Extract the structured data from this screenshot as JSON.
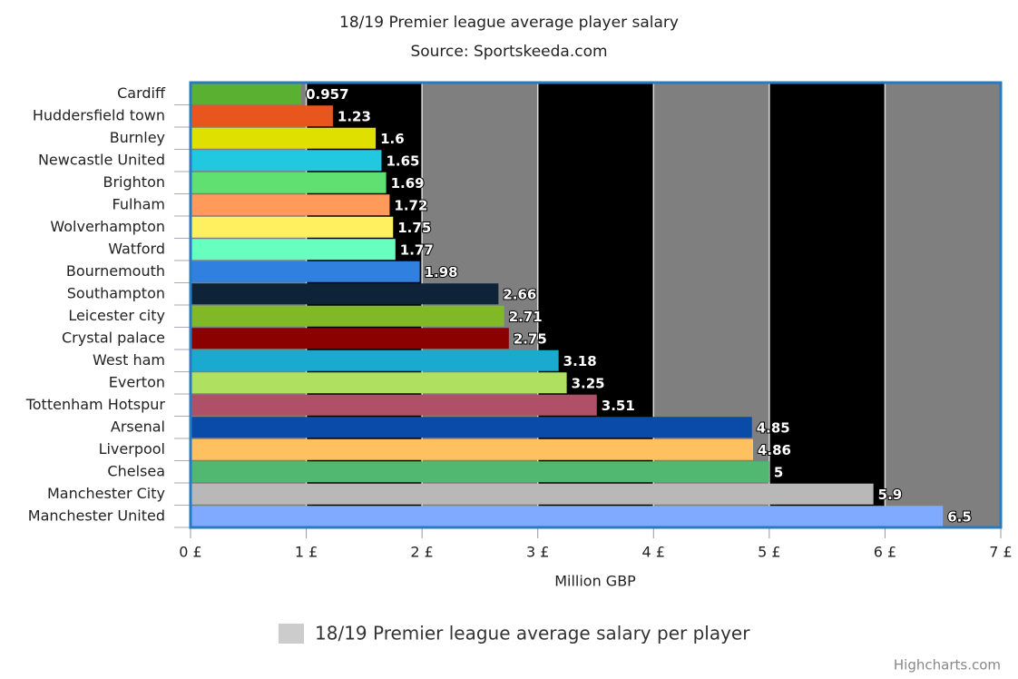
{
  "chart_data": {
    "type": "bar",
    "orientation": "horizontal",
    "title": "18/19 Premier league average player salary",
    "subtitle": "Source: Sportskeeda.com",
    "x_label": "Million GBP",
    "credits": "Highcharts.com",
    "categories": [
      "Cardiff",
      "Huddersfield town",
      "Burnley",
      "Newcastle United",
      "Brighton",
      "Fulham",
      "Wolverhampton",
      "Watford",
      "Bournemouth",
      "Southampton",
      "Leicester city",
      "Crystal palace",
      "West ham",
      "Everton",
      "Tottenham Hotspur",
      "Arsenal",
      "Liverpool",
      "Chelsea",
      "Manchester City",
      "Manchester United"
    ],
    "series": [
      {
        "name": "18/19 Premier league average salary per player",
        "color": "#cccccc",
        "colors": [
          "#5ab030",
          "#e8561e",
          "#e0e000",
          "#22c8e0",
          "#60e070",
          "#ff9a5a",
          "#fff060",
          "#66ffc0",
          "#3080e0",
          "#0e2238",
          "#80b828",
          "#8b0000",
          "#1aaad0",
          "#b0e060",
          "#b05068",
          "#0a4aa8",
          "#ffc060",
          "#50b870",
          "#b8b8b8",
          "#80aaff"
        ],
        "values": [
          0.957,
          1.23,
          1.6,
          1.65,
          1.69,
          1.72,
          1.75,
          1.77,
          1.98,
          2.66,
          2.71,
          2.75,
          3.18,
          3.25,
          3.51,
          4.85,
          4.86,
          5,
          5.9,
          6.5
        ]
      }
    ],
    "xlim": [
      0,
      7
    ],
    "xticks": [
      {
        "value": 0,
        "label": "0 £"
      },
      {
        "value": 1,
        "label": "1 £"
      },
      {
        "value": 2,
        "label": "2 £"
      },
      {
        "value": 3,
        "label": "3 £"
      },
      {
        "value": 4,
        "label": "4 £"
      },
      {
        "value": 5,
        "label": "5 £"
      },
      {
        "value": 6,
        "label": "6 £"
      },
      {
        "value": 7,
        "label": "7 £"
      }
    ],
    "band_colors": [
      "#7f7f7f",
      "#000000"
    ],
    "grid": true,
    "grid_color": "#dddddd",
    "border_color": "#2a7ac0",
    "legend": "bottom"
  }
}
